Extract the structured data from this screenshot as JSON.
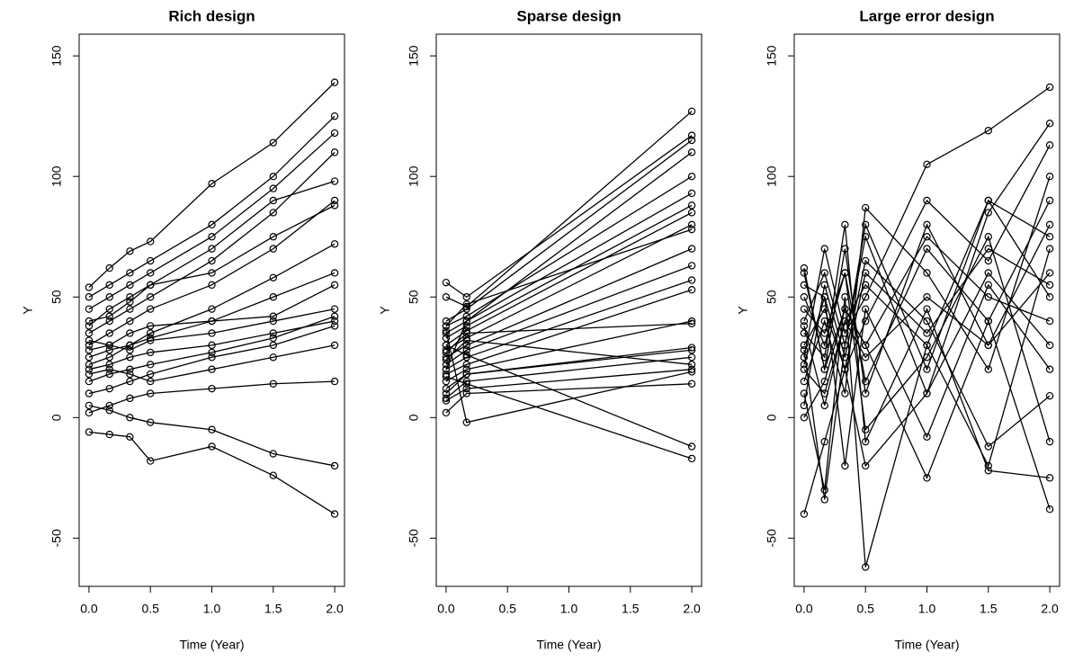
{
  "chart_data": [
    {
      "type": "line",
      "title": "Rich design",
      "x_label": "Time (Year)",
      "y_label": "Y",
      "color": "#000000",
      "x": [
        0,
        0.167,
        0.333,
        0.5,
        1,
        1.5,
        2
      ],
      "xlim": [
        -0.08,
        2.08
      ],
      "xticks": [
        {
          "value": 0,
          "label": "0.0"
        },
        0.5,
        {
          "value": 1,
          "label": "1.0"
        },
        1.5,
        {
          "value": 2,
          "label": "2.0"
        }
      ],
      "ylim": [
        -70,
        159
      ],
      "yticks": [
        -50,
        0,
        50,
        100,
        150
      ],
      "series": [
        {
          "values": [
            30,
            35,
            40,
            45,
            55,
            70,
            90
          ]
        },
        {
          "values": [
            25,
            28,
            30,
            33,
            40,
            50,
            60
          ]
        },
        {
          "values": [
            45,
            50,
            55,
            60,
            75,
            95,
            118
          ]
        },
        {
          "values": [
            20,
            22,
            25,
            27,
            30,
            35,
            40
          ]
        },
        {
          "values": [
            10,
            12,
            15,
            18,
            25,
            30,
            38
          ]
        },
        {
          "values": [
            35,
            40,
            45,
            50,
            65,
            85,
            110
          ]
        },
        {
          "values": [
            5,
            3,
            0,
            -2,
            -5,
            -15,
            -20
          ]
        },
        {
          "values": [
            -6,
            -7,
            -8,
            -18,
            -12,
            -24,
            -40
          ]
        },
        {
          "values": [
            50,
            55,
            60,
            65,
            80,
            100,
            125
          ]
        },
        {
          "values": [
            15,
            18,
            20,
            22,
            27,
            33,
            42
          ]
        },
        {
          "values": [
            40,
            42,
            48,
            55,
            60,
            75,
            88
          ]
        },
        {
          "values": [
            28,
            30,
            28,
            32,
            35,
            40,
            45
          ]
        },
        {
          "values": [
            2,
            5,
            8,
            10,
            12,
            14,
            15
          ]
        },
        {
          "values": [
            54,
            62,
            69,
            73,
            97,
            114,
            139
          ]
        },
        {
          "values": [
            22,
            25,
            30,
            35,
            45,
            58,
            72
          ]
        },
        {
          "values": [
            32,
            30,
            35,
            38,
            40,
            42,
            55
          ]
        },
        {
          "values": [
            18,
            20,
            18,
            15,
            20,
            25,
            30
          ]
        },
        {
          "values": [
            38,
            45,
            50,
            55,
            70,
            90,
            98
          ]
        }
      ]
    },
    {
      "type": "line",
      "title": "Sparse design",
      "x_label": "Time (Year)",
      "y_label": "Y",
      "color": "#000000",
      "x": [
        0,
        0.167,
        2
      ],
      "xlim": [
        -0.08,
        2.08
      ],
      "xticks": [
        {
          "value": 0,
          "label": "0.0"
        },
        0.5,
        {
          "value": 1,
          "label": "1.0"
        },
        1.5,
        {
          "value": 2,
          "label": "2.0"
        }
      ],
      "ylim": [
        -70,
        159
      ],
      "yticks": [
        -50,
        0,
        50,
        100,
        150
      ],
      "series": [
        {
          "values": [
            56,
            50,
            117
          ]
        },
        {
          "values": [
            50,
            46,
            127
          ]
        },
        {
          "values": [
            40,
            45,
            115
          ]
        },
        {
          "values": [
            38,
            42,
            100
          ]
        },
        {
          "values": [
            35,
            40,
            93
          ]
        },
        {
          "values": [
            33,
            38,
            88
          ]
        },
        {
          "values": [
            30,
            36,
            85
          ]
        },
        {
          "values": [
            28,
            33,
            80
          ]
        },
        {
          "values": [
            25,
            30,
            70
          ]
        },
        {
          "values": [
            22,
            28,
            63
          ]
        },
        {
          "values": [
            20,
            25,
            57
          ]
        },
        {
          "values": [
            18,
            22,
            53
          ]
        },
        {
          "values": [
            15,
            20,
            40
          ]
        },
        {
          "values": [
            12,
            18,
            29
          ]
        },
        {
          "values": [
            8,
            15,
            25
          ]
        },
        {
          "values": [
            7,
            12,
            20
          ]
        },
        {
          "values": [
            2,
            10,
            14
          ]
        },
        {
          "values": [
            36,
            -2,
            19
          ]
        },
        {
          "values": [
            24,
            32,
            22
          ]
        },
        {
          "values": [
            30,
            26,
            -12
          ]
        },
        {
          "values": [
            17,
            14,
            -17
          ]
        },
        {
          "values": [
            38,
            47,
            78
          ]
        },
        {
          "values": [
            27,
            35,
            39
          ]
        },
        {
          "values": [
            20,
            40,
            110
          ]
        },
        {
          "values": [
            10,
            18,
            28
          ]
        }
      ]
    },
    {
      "type": "line",
      "title": "Large error design",
      "x_label": "Time (Year)",
      "y_label": "Y",
      "color": "#000000",
      "x": [
        0,
        0.167,
        0.333,
        0.5,
        1,
        1.5,
        2
      ],
      "xlim": [
        -0.08,
        2.08
      ],
      "xticks": [
        {
          "value": 0,
          "label": "0.0"
        },
        0.5,
        {
          "value": 1,
          "label": "1.0"
        },
        1.5,
        {
          "value": 2,
          "label": "2.0"
        }
      ],
      "ylim": [
        -70,
        159
      ],
      "yticks": [
        -50,
        0,
        50,
        100,
        150
      ],
      "series": [
        {
          "values": [
            30,
            45,
            20,
            60,
            35,
            70,
            55
          ]
        },
        {
          "values": [
            20,
            10,
            40,
            25,
            50,
            30,
            80
          ]
        },
        {
          "values": [
            50,
            30,
            60,
            15,
            70,
            40,
            90
          ]
        },
        {
          "values": [
            -40,
            -10,
            20,
            -20,
            10,
            60,
            30
          ]
        },
        {
          "values": [
            40,
            60,
            30,
            80,
            20,
            90,
            50
          ]
        },
        {
          "values": [
            10,
            -30,
            50,
            -62,
            30,
            -20,
            70
          ]
        },
        {
          "values": [
            25,
            70,
            35,
            50,
            105,
            119,
            137
          ]
        },
        {
          "values": [
            60,
            20,
            45,
            30,
            -25,
            40,
            -38
          ]
        },
        {
          "values": [
            15,
            40,
            10,
            87,
            60,
            20,
            100
          ]
        },
        {
          "values": [
            35,
            25,
            80,
            -10,
            45,
            -22,
            -25
          ]
        },
        {
          "values": [
            55,
            50,
            20,
            40,
            90,
            65,
            113
          ]
        },
        {
          "values": [
            0,
            15,
            45,
            30,
            75,
            50,
            40
          ]
        },
        {
          "values": [
            28,
            -34,
            30,
            75,
            10,
            85,
            122
          ]
        },
        {
          "values": [
            45,
            35,
            60,
            -5,
            25,
            75,
            -10
          ]
        },
        {
          "values": [
            5,
            55,
            25,
            65,
            40,
            -12,
            9
          ]
        },
        {
          "values": [
            62,
            20,
            70,
            10,
            80,
            30,
            60
          ]
        },
        {
          "values": [
            22,
            50,
            -20,
            45,
            -8,
            55,
            20
          ]
        },
        {
          "values": [
            38,
            5,
            40,
            55,
            30,
            90,
            75
          ]
        }
      ]
    }
  ]
}
